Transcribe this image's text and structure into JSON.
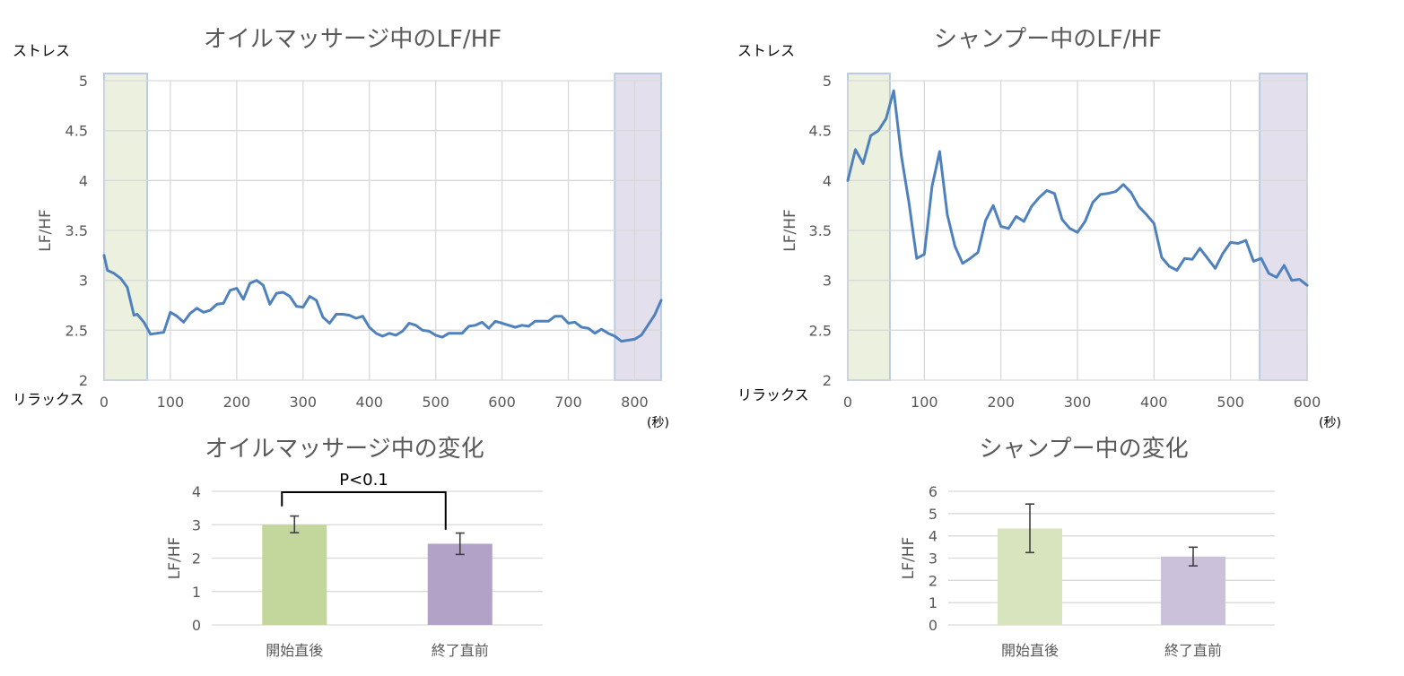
{
  "chart_data": [
    {
      "type": "line",
      "title": "オイルマッサージ中のLF/HF",
      "ylabel": "LF/HF",
      "y_top_label": "ストレス",
      "y_bottom_label": "リラックス",
      "x_unit": "(秒)",
      "xlim": [
        0,
        840
      ],
      "ylim": [
        2,
        5
      ],
      "x_ticks": [
        "0",
        "100",
        "200",
        "300",
        "400",
        "500",
        "600",
        "700",
        "800"
      ],
      "y_ticks": [
        "2",
        "2.5",
        "3",
        "3.5",
        "4",
        "4.5",
        "5"
      ],
      "grid": true,
      "line_color": "#4f81bd",
      "highlight_ranges": [
        {
          "x": [
            0,
            65
          ],
          "color": "#ebf1de",
          "border": "#b8cce4"
        },
        {
          "x": [
            770,
            840
          ],
          "color": "#e4dfec",
          "border": "#b8cce4"
        }
      ],
      "series": [
        {
          "x": [
            0,
            5,
            15,
            25,
            35,
            45,
            50,
            60,
            70,
            80,
            90,
            100,
            110,
            120,
            130,
            140,
            150,
            160,
            170,
            180,
            190,
            200,
            210,
            220,
            230,
            240,
            250,
            260,
            270,
            280,
            290,
            300,
            310,
            320,
            330,
            340,
            350,
            360,
            370,
            380,
            390,
            400,
            410,
            420,
            430,
            440,
            450,
            460,
            470,
            480,
            490,
            500,
            510,
            520,
            530,
            540,
            550,
            560,
            570,
            580,
            590,
            600,
            610,
            620,
            630,
            640,
            650,
            660,
            670,
            680,
            690,
            700,
            710,
            720,
            730,
            740,
            750,
            760,
            770,
            780,
            790,
            800,
            810,
            820,
            830,
            840
          ],
          "y": [
            3.25,
            3.1,
            3.07,
            3.02,
            2.93,
            2.65,
            2.66,
            2.58,
            2.46,
            2.47,
            2.48,
            2.68,
            2.64,
            2.58,
            2.67,
            2.72,
            2.68,
            2.7,
            2.76,
            2.77,
            2.9,
            2.92,
            2.81,
            2.97,
            3.0,
            2.95,
            2.76,
            2.87,
            2.88,
            2.84,
            2.74,
            2.73,
            2.84,
            2.8,
            2.63,
            2.57,
            2.66,
            2.66,
            2.65,
            2.62,
            2.64,
            2.53,
            2.47,
            2.44,
            2.47,
            2.45,
            2.49,
            2.57,
            2.55,
            2.5,
            2.49,
            2.45,
            2.43,
            2.47,
            2.47,
            2.47,
            2.54,
            2.55,
            2.58,
            2.52,
            2.59,
            2.57,
            2.55,
            2.53,
            2.55,
            2.54,
            2.59,
            2.59,
            2.59,
            2.64,
            2.64,
            2.57,
            2.58,
            2.53,
            2.52,
            2.47,
            2.51,
            2.47,
            2.44,
            2.39,
            2.4,
            2.41,
            2.45,
            2.55,
            2.65,
            2.8
          ]
        }
      ]
    },
    {
      "type": "line",
      "title": "シャンプー中のLF/HF",
      "ylabel": "LF/HF",
      "y_top_label": "ストレス",
      "y_bottom_label": "リラックス",
      "x_unit": "(秒)",
      "xlim": [
        0,
        600
      ],
      "ylim": [
        2,
        5
      ],
      "x_ticks": [
        "0",
        "100",
        "200",
        "300",
        "400",
        "500",
        "600"
      ],
      "y_ticks": [
        "2",
        "2.5",
        "3",
        "3.5",
        "4",
        "4.5",
        "5"
      ],
      "grid": true,
      "line_color": "#4f81bd",
      "highlight_ranges": [
        {
          "x": [
            0,
            55
          ],
          "color": "#ebf1de",
          "border": "#b8cce4"
        },
        {
          "x": [
            538,
            600
          ],
          "color": "#e4dfec",
          "border": "#b8cce4"
        }
      ],
      "series": [
        {
          "x": [
            0,
            10,
            20,
            30,
            40,
            50,
            60,
            70,
            80,
            90,
            100,
            110,
            120,
            130,
            140,
            150,
            160,
            170,
            180,
            190,
            200,
            210,
            220,
            230,
            240,
            250,
            260,
            270,
            280,
            290,
            300,
            310,
            320,
            330,
            340,
            350,
            360,
            370,
            380,
            390,
            400,
            410,
            420,
            430,
            440,
            450,
            460,
            470,
            480,
            490,
            500,
            510,
            520,
            530,
            540,
            550,
            560,
            570,
            580,
            590,
            600
          ],
          "y": [
            4.0,
            4.31,
            4.17,
            4.45,
            4.5,
            4.62,
            4.9,
            4.25,
            3.77,
            3.22,
            3.26,
            3.94,
            4.29,
            3.66,
            3.34,
            3.17,
            3.22,
            3.28,
            3.6,
            3.75,
            3.54,
            3.52,
            3.64,
            3.59,
            3.74,
            3.83,
            3.9,
            3.87,
            3.61,
            3.52,
            3.48,
            3.59,
            3.78,
            3.86,
            3.87,
            3.89,
            3.96,
            3.88,
            3.74,
            3.66,
            3.57,
            3.23,
            3.14,
            3.1,
            3.22,
            3.21,
            3.32,
            3.22,
            3.12,
            3.27,
            3.38,
            3.37,
            3.4,
            3.19,
            3.22,
            3.07,
            3.03,
            3.15,
            3.0,
            3.01,
            2.95
          ]
        }
      ]
    },
    {
      "type": "bar",
      "title": "オイルマッサージ中の変化",
      "ylabel": "LF/HF",
      "categories": [
        "開始直後",
        "終了直前"
      ],
      "values": [
        3.0,
        2.43
      ],
      "errors": [
        [
          2.76,
          3.26
        ],
        [
          2.11,
          2.75
        ]
      ],
      "colors": [
        "#c3d69b",
        "#b3a2c7"
      ],
      "ylim": [
        0,
        4
      ],
      "y_ticks": [
        "0",
        "1",
        "2",
        "3",
        "4"
      ],
      "annotation": "P<0.1",
      "grid": true
    },
    {
      "type": "bar",
      "title": "シャンプー中の変化",
      "ylabel": "LF/HF",
      "categories": [
        "開始直後",
        "終了直前"
      ],
      "values": [
        4.33,
        3.07
      ],
      "errors": [
        [
          3.25,
          5.43
        ],
        [
          2.65,
          3.49
        ]
      ],
      "colors": [
        "#d7e4bd",
        "#ccc1da"
      ],
      "ylim": [
        0,
        6
      ],
      "y_ticks": [
        "0",
        "1",
        "2",
        "3",
        "4",
        "5",
        "6"
      ],
      "grid": true
    }
  ]
}
